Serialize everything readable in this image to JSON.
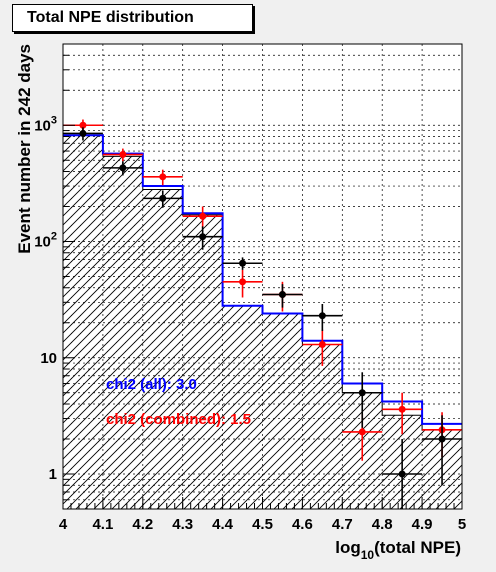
{
  "chart_data": {
    "type": "histogram",
    "title": "Total NPE distribution",
    "xlabel_prefix": "log",
    "xlabel_sub": "10",
    "xlabel_suffix": "(total NPE)",
    "ylabel": "Event number in 242 days",
    "xlim": [
      4.0,
      5.0
    ],
    "ylim": [
      0.5,
      5000
    ],
    "yscale": "log",
    "grid": true,
    "x_ticks": [
      "4",
      "4.1",
      "4.2",
      "4.3",
      "4.4",
      "4.5",
      "4.6",
      "4.7",
      "4.8",
      "4.9",
      "5"
    ],
    "y_ticks": [
      {
        "value": 1,
        "label": "1",
        "sup": ""
      },
      {
        "value": 10,
        "label": "10",
        "sup": ""
      },
      {
        "value": 100,
        "label": "10",
        "sup": "2"
      },
      {
        "value": 1000,
        "label": "10",
        "sup": "3"
      }
    ],
    "bin_edges": [
      4.0,
      4.1,
      4.2,
      4.3,
      4.4,
      4.5,
      4.6,
      4.7,
      4.8,
      4.9,
      5.0
    ],
    "hist_fill": {
      "color": "#000000",
      "pattern": "hatched",
      "values": [
        820,
        540,
        280,
        170,
        28,
        24,
        13,
        5.0,
        3.2,
        2.4
      ]
    },
    "hist_blue": {
      "color": "#0000ff",
      "values": [
        820,
        570,
        300,
        175,
        28,
        24,
        14,
        6.0,
        4.2,
        2.7
      ]
    },
    "points_red": {
      "color": "#ff0000",
      "x": [
        4.05,
        4.15,
        4.25,
        4.35,
        4.45,
        4.55,
        4.65,
        4.75,
        4.85,
        4.95
      ],
      "y": [
        1000,
        560,
        360,
        165,
        45,
        35,
        13,
        2.3,
        3.6,
        2.4
      ],
      "err_low": [
        120,
        70,
        55,
        35,
        12,
        10,
        4.5,
        1.0,
        1.4,
        1.0
      ],
      "err_high": [
        120,
        70,
        55,
        35,
        12,
        10,
        4.5,
        1.0,
        1.4,
        1.0
      ]
    },
    "points_black": {
      "color": "#000000",
      "x": [
        4.05,
        4.15,
        4.25,
        4.35,
        4.45,
        4.55,
        4.65,
        4.75,
        4.85,
        4.95
      ],
      "y": [
        850,
        430,
        235,
        110,
        65,
        35,
        23,
        5.0,
        1.0,
        2.0
      ],
      "err_low": [
        110,
        60,
        40,
        25,
        8,
        8,
        6,
        2.5,
        0.5,
        1.2
      ],
      "err_high": [
        110,
        60,
        40,
        25,
        8,
        8,
        6,
        2.5,
        1.0,
        1.2
      ]
    },
    "annotations": [
      {
        "text": "chi2 (all): 3.0",
        "color": "#0000ff"
      },
      {
        "text": "chi2 (combined): 1.5",
        "color": "#ff0000"
      }
    ]
  }
}
